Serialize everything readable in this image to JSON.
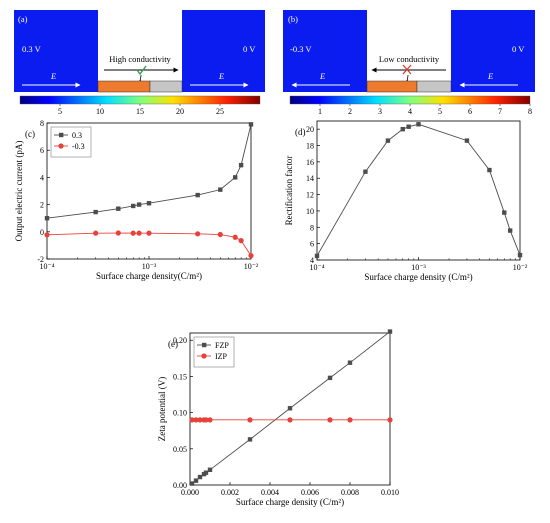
{
  "sim": {
    "a": {
      "panel": "(a)",
      "left_voltage": "0.3 V",
      "right_voltage": "0 V",
      "field_label": "E",
      "channel_label": "High conductivity",
      "current_label": "I",
      "colorbar_ticks": [
        "5",
        "10",
        "15",
        "20",
        "25"
      ],
      "colorbar_range": [
        0,
        30
      ]
    },
    "b": {
      "panel": "(b)",
      "left_voltage": "-0.3 V",
      "right_voltage": "0 V",
      "field_label": "E",
      "channel_label": "Low conductivity",
      "current_label": "I",
      "colorbar_ticks": [
        "1",
        "2",
        "3",
        "4",
        "5",
        "6",
        "7",
        "8"
      ],
      "colorbar_range": [
        0,
        8
      ]
    },
    "colors": {
      "blue": "#0a1cf0",
      "dark_blue": "#061090",
      "orange": "#ee7a2d",
      "grey": "#c6c6c6"
    }
  },
  "chart_data": [
    {
      "panel": "(c)",
      "type": "line",
      "xscale": "log",
      "xlim": [
        0.0001,
        0.01
      ],
      "ylim": [
        -2,
        8
      ],
      "xlabel": "Surface charge density(C/m²)",
      "ylabel": "Output electric current (pA)",
      "xticks": [
        "10⁻⁴",
        "10⁻³",
        "10⁻²"
      ],
      "yticks": [
        "-2",
        "0",
        "2",
        "4",
        "6",
        "8"
      ],
      "legend_position": "top-left",
      "series": [
        {
          "name": "0.3",
          "color": "#4d4d4d",
          "marker": "square",
          "x": [
            0.0001,
            0.0003,
            0.0005,
            0.0007,
            0.0008,
            0.001,
            0.003,
            0.005,
            0.007,
            0.008,
            0.01
          ],
          "y": [
            1.0,
            1.45,
            1.7,
            1.9,
            2.0,
            2.1,
            2.7,
            3.1,
            4.0,
            4.9,
            7.9
          ]
        },
        {
          "name": "-0.3",
          "color": "#e8413a",
          "marker": "circle",
          "x": [
            0.0001,
            0.0003,
            0.0005,
            0.0007,
            0.0008,
            0.001,
            0.003,
            0.005,
            0.007,
            0.008,
            0.01
          ],
          "y": [
            -0.22,
            -0.1,
            -0.09,
            -0.1,
            -0.1,
            -0.1,
            -0.15,
            -0.2,
            -0.4,
            -0.65,
            -1.75
          ]
        }
      ]
    },
    {
      "panel": "(d)",
      "type": "line",
      "xscale": "log",
      "xlim": [
        0.0001,
        0.01
      ],
      "ylim": [
        4,
        21
      ],
      "xlabel": "Surface charge density (C/m²)",
      "ylabel": "Rectification factor",
      "xticks": [
        "10⁻⁴",
        "10⁻³",
        "10⁻²"
      ],
      "yticks": [
        "4",
        "6",
        "8",
        "10",
        "12",
        "14",
        "16",
        "18",
        "20"
      ],
      "series": [
        {
          "name": "",
          "color": "#4d4d4d",
          "marker": "square",
          "x": [
            0.0001,
            0.0003,
            0.0005,
            0.0007,
            0.0008,
            0.001,
            0.003,
            0.005,
            0.007,
            0.008,
            0.01
          ],
          "y": [
            4.5,
            14.8,
            18.6,
            20.0,
            20.3,
            20.6,
            18.6,
            15.0,
            9.8,
            7.6,
            4.6
          ]
        }
      ]
    },
    {
      "panel": "(e)",
      "type": "line",
      "xscale": "linear",
      "xlim": [
        0,
        0.01
      ],
      "ylim": [
        0,
        0.21
      ],
      "xlabel": "Surface charge density (C/m²)",
      "ylabel": "Zeta potential (V)",
      "xticks": [
        "0.000",
        "0.002",
        "0.004",
        "0.006",
        "0.008",
        "0.010"
      ],
      "yticks": [
        "0.00",
        "0.05",
        "0.10",
        "0.15",
        "0.20"
      ],
      "legend_position": "top-left",
      "series": [
        {
          "name": "FZP",
          "color": "#4d4d4d",
          "marker": "square",
          "x": [
            0.0001,
            0.0003,
            0.0005,
            0.0007,
            0.0008,
            0.001,
            0.003,
            0.005,
            0.007,
            0.008,
            0.01
          ],
          "y": [
            0.002,
            0.006,
            0.011,
            0.015,
            0.017,
            0.021,
            0.063,
            0.106,
            0.148,
            0.169,
            0.212
          ]
        },
        {
          "name": "IZP",
          "color": "#e8413a",
          "marker": "circle",
          "x": [
            0.0001,
            0.0003,
            0.0005,
            0.0007,
            0.0008,
            0.001,
            0.003,
            0.005,
            0.007,
            0.008,
            0.01
          ],
          "y": [
            0.09,
            0.09,
            0.09,
            0.09,
            0.09,
            0.09,
            0.09,
            0.09,
            0.09,
            0.09,
            0.09
          ]
        }
      ]
    }
  ]
}
